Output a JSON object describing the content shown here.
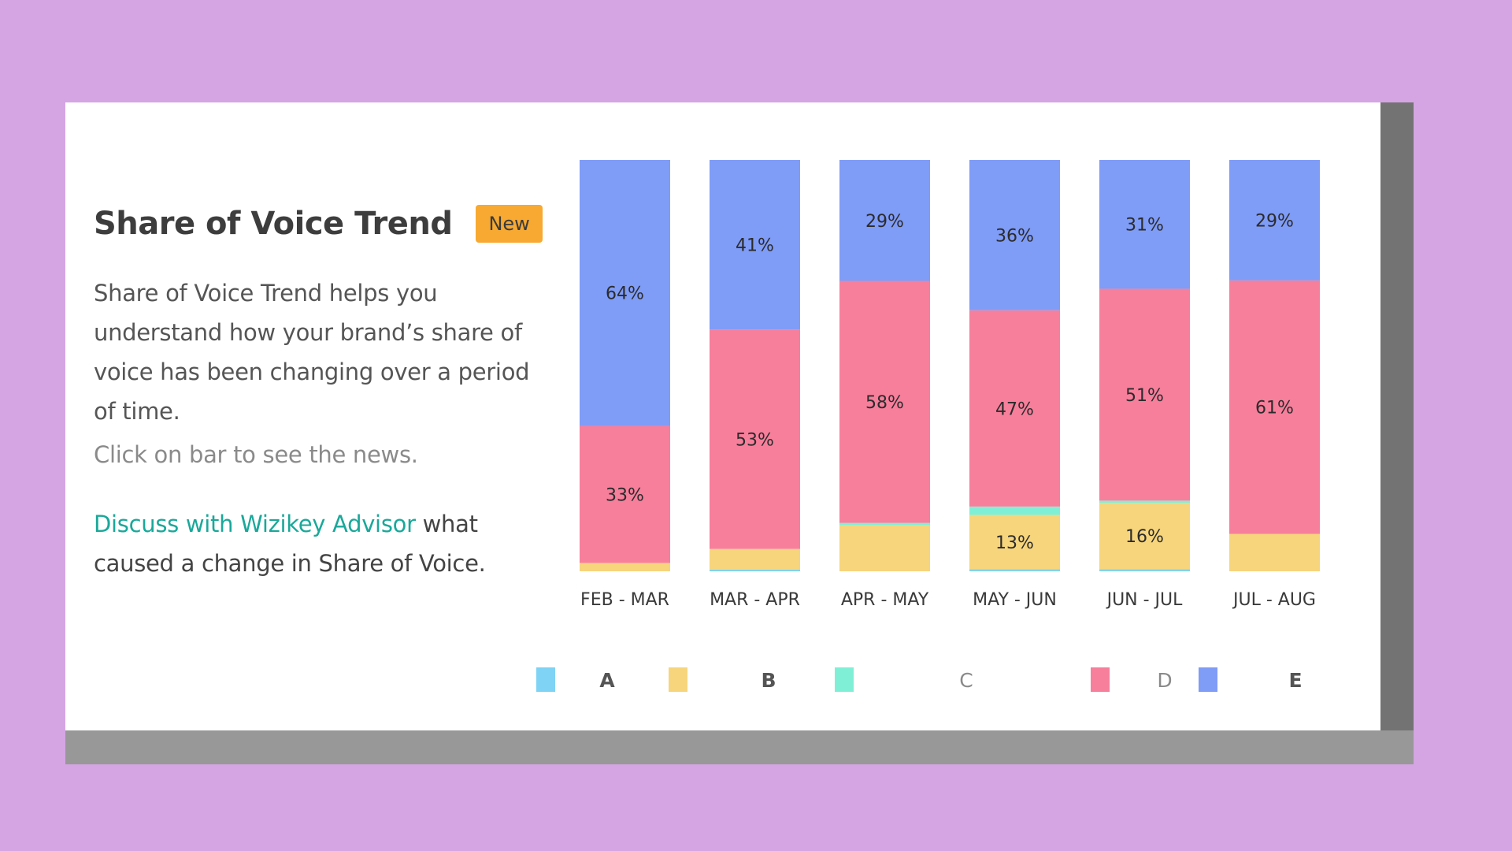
{
  "panel": {
    "title": "Share of Voice Trend",
    "badge": "New",
    "description": "Share of Voice Trend helps you understand how your brand’s share of voice has been changing over a period of time.",
    "hint": "Click on bar to see the news.",
    "discuss_link": "Discuss with Wizikey Advisor",
    "discuss_rest": " what caused a change in Share of Voice."
  },
  "chart_data": {
    "type": "bar",
    "stacked": true,
    "categories": [
      "FEB - MAR",
      "MAR - APR",
      "APR - MAY",
      "MAY - JUN",
      "JUN - JUL",
      "JUL - AUG"
    ],
    "series": [
      {
        "name": "A",
        "color": "#7fd3f5",
        "values": [
          0,
          0.4,
          0,
          0.5,
          0.5,
          0
        ]
      },
      {
        "name": "B",
        "color": "#f7d57c",
        "values": [
          2,
          5,
          11,
          13,
          16,
          9
        ]
      },
      {
        "name": "C",
        "color": "#7ff0d5",
        "values": [
          0,
          0,
          0.6,
          2,
          0.5,
          0
        ]
      },
      {
        "name": "D",
        "color": "#f77f9c",
        "values": [
          33,
          53,
          58,
          47,
          51,
          61
        ]
      },
      {
        "name": "E",
        "color": "#7f9cf7",
        "values": [
          64,
          41,
          29,
          36,
          31,
          29
        ]
      }
    ],
    "data_labels": [
      {
        "series": "E",
        "values": [
          "64%",
          "41%",
          "29%",
          "36%",
          "31%",
          "29%"
        ]
      },
      {
        "series": "D",
        "values": [
          "33%",
          "53%",
          "58%",
          "47%",
          "51%",
          "61%"
        ]
      },
      {
        "series": "B",
        "values": [
          "",
          "",
          "",
          "13%",
          "16%",
          ""
        ]
      }
    ],
    "ylim": [
      0,
      100
    ],
    "legend_position": "bottom",
    "legend_label_colors": {
      "A": "#555555",
      "B": "#555555",
      "C": "#8a8a8a",
      "D": "#8a8a8a",
      "E": "#555555"
    }
  }
}
